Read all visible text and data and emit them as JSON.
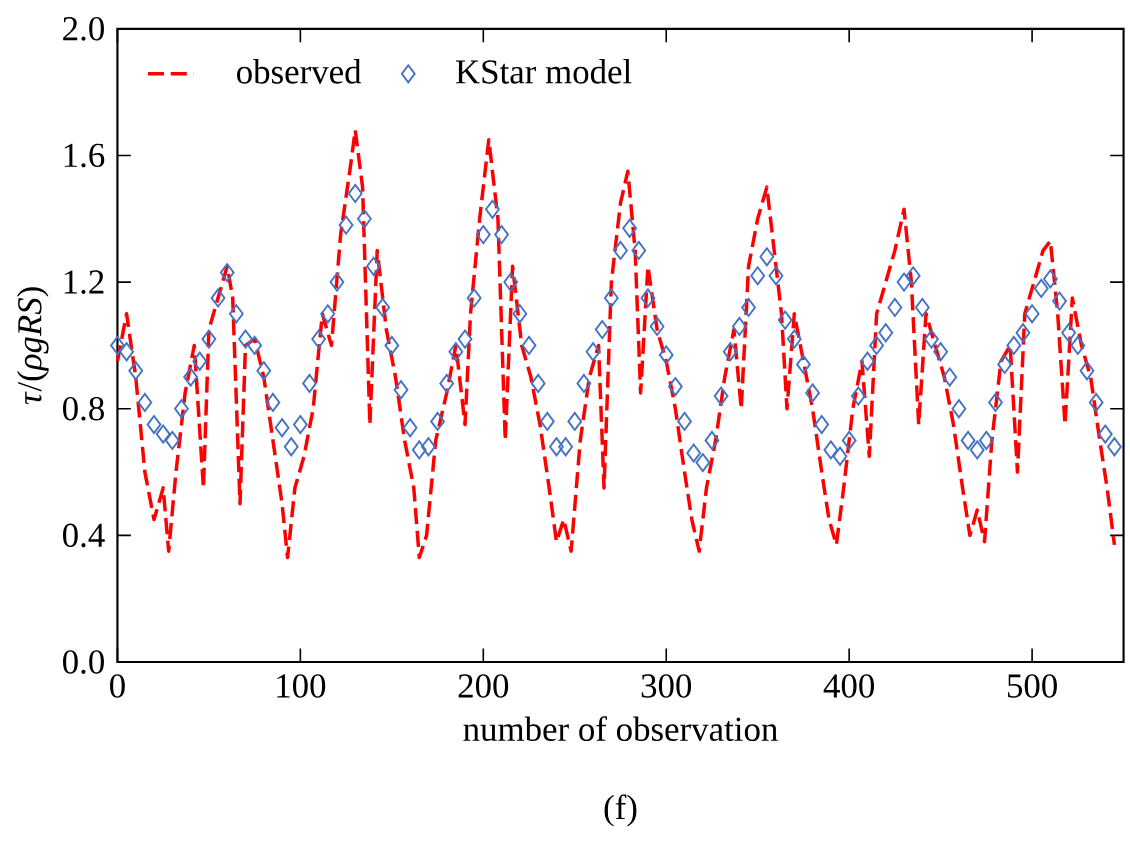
{
  "chart_data": {
    "type": "line",
    "xlabel": "number of observation",
    "ylabel": "*τ*/(*ρgRS*)",
    "annotations": [
      "(f)"
    ],
    "xlim": [
      0,
      550
    ],
    "xticks": [
      0,
      100,
      200,
      300,
      400,
      500
    ],
    "ylim": [
      0,
      2
    ],
    "yticks": [
      {
        "value": 0,
        "label": "0.0"
      },
      {
        "value": 0.4,
        "label": "0.4"
      },
      {
        "value": 0.8,
        "label": "0.8"
      },
      {
        "value": 1.2,
        "label": "1.2"
      },
      {
        "value": 1.6,
        "label": "1.6"
      },
      {
        "value": 2,
        "label": "2.0"
      }
    ],
    "grid": false,
    "legend": "top left",
    "series": [
      {
        "name": "observed",
        "type": "line",
        "color": "#ff0000",
        "line_style": "dashed",
        "marker": "none",
        "x": [
          0,
          5,
          10,
          15,
          20,
          25,
          28,
          32,
          37,
          42,
          47,
          50,
          55,
          60,
          63,
          67,
          70,
          75,
          80,
          85,
          90,
          93,
          97,
          102,
          107,
          112,
          117,
          122,
          127,
          130,
          134,
          138,
          142,
          147,
          152,
          157,
          162,
          165,
          169,
          174,
          180,
          185,
          190,
          193,
          198,
          203,
          208,
          212,
          216,
          221,
          226,
          231,
          236,
          240,
          244,
          248,
          253,
          258,
          263,
          266,
          270,
          275,
          279,
          283,
          286,
          290,
          295,
          300,
          305,
          310,
          314,
          318,
          322,
          327,
          332,
          337,
          341,
          345,
          350,
          355,
          359,
          363,
          366,
          370,
          375,
          380,
          385,
          389,
          393,
          397,
          402,
          407,
          411,
          415,
          420,
          425,
          430,
          434,
          438,
          442,
          447,
          452,
          457,
          462,
          466,
          470,
          474,
          478,
          483,
          488,
          492,
          496,
          501,
          506,
          510,
          514,
          518,
          522,
          527,
          532,
          537,
          541,
          545
        ],
        "values": [
          0.95,
          1.1,
          0.9,
          0.6,
          0.45,
          0.55,
          0.35,
          0.6,
          0.85,
          1.0,
          0.55,
          1.05,
          1.15,
          1.25,
          1.15,
          0.5,
          1.0,
          1.02,
          0.9,
          0.7,
          0.5,
          0.33,
          0.55,
          0.65,
          0.8,
          1.1,
          1.0,
          1.35,
          1.55,
          1.68,
          1.5,
          0.75,
          1.3,
          1.05,
          0.9,
          0.7,
          0.55,
          0.33,
          0.4,
          0.7,
          0.85,
          1.0,
          0.75,
          1.1,
          1.4,
          1.65,
          1.4,
          0.7,
          1.25,
          1.0,
          0.9,
          0.75,
          0.55,
          0.38,
          0.45,
          0.35,
          0.7,
          0.9,
          1.0,
          0.55,
          1.2,
          1.45,
          1.55,
          1.3,
          0.85,
          1.25,
          1.05,
          0.95,
          0.8,
          0.6,
          0.45,
          0.35,
          0.55,
          0.7,
          0.9,
          1.05,
          0.8,
          1.25,
          1.4,
          1.5,
          1.3,
          1.1,
          0.8,
          1.1,
          0.95,
          0.8,
          0.6,
          0.45,
          0.37,
          0.55,
          0.8,
          0.95,
          0.65,
          1.1,
          1.2,
          1.3,
          1.43,
          1.2,
          0.75,
          1.1,
          1.0,
          0.9,
          0.75,
          0.55,
          0.4,
          0.48,
          0.38,
          0.7,
          0.95,
          1.0,
          0.6,
          1.1,
          1.2,
          1.3,
          1.33,
          1.1,
          0.75,
          1.15,
          1.0,
          0.9,
          0.7,
          0.55,
          0.37
        ]
      },
      {
        "name": "KStar model",
        "type": "scatter",
        "color": "#4472c4",
        "marker": "diamond",
        "x": [
          0,
          5,
          10,
          15,
          20,
          25,
          30,
          35,
          40,
          45,
          50,
          55,
          60,
          65,
          70,
          75,
          80,
          85,
          90,
          95,
          100,
          105,
          110,
          115,
          120,
          125,
          130,
          135,
          140,
          145,
          150,
          155,
          160,
          165,
          170,
          175,
          180,
          185,
          190,
          195,
          200,
          205,
          210,
          215,
          220,
          225,
          230,
          235,
          240,
          245,
          250,
          255,
          260,
          265,
          270,
          275,
          280,
          285,
          290,
          295,
          300,
          305,
          310,
          315,
          320,
          325,
          330,
          335,
          340,
          345,
          350,
          355,
          360,
          365,
          370,
          375,
          380,
          385,
          390,
          395,
          400,
          405,
          410,
          415,
          420,
          425,
          430,
          435,
          440,
          445,
          450,
          455,
          460,
          465,
          470,
          475,
          480,
          485,
          490,
          495,
          500,
          505,
          510,
          515,
          520,
          525,
          530,
          535,
          540,
          545
        ],
        "values": [
          1.0,
          0.98,
          0.92,
          0.82,
          0.75,
          0.72,
          0.7,
          0.8,
          0.9,
          0.95,
          1.02,
          1.15,
          1.23,
          1.1,
          1.02,
          1.0,
          0.92,
          0.82,
          0.74,
          0.68,
          0.75,
          0.88,
          1.02,
          1.1,
          1.2,
          1.38,
          1.48,
          1.4,
          1.25,
          1.12,
          1.0,
          0.86,
          0.74,
          0.67,
          0.68,
          0.76,
          0.88,
          0.98,
          1.02,
          1.15,
          1.35,
          1.43,
          1.35,
          1.2,
          1.1,
          1.0,
          0.88,
          0.76,
          0.68,
          0.68,
          0.76,
          0.88,
          0.98,
          1.05,
          1.15,
          1.3,
          1.37,
          1.3,
          1.15,
          1.06,
          0.97,
          0.87,
          0.76,
          0.66,
          0.63,
          0.7,
          0.84,
          0.98,
          1.06,
          1.12,
          1.22,
          1.28,
          1.22,
          1.08,
          1.02,
          0.94,
          0.85,
          0.75,
          0.67,
          0.65,
          0.7,
          0.84,
          0.95,
          1.0,
          1.04,
          1.12,
          1.2,
          1.22,
          1.12,
          1.02,
          0.98,
          0.9,
          0.8,
          0.7,
          0.67,
          0.7,
          0.82,
          0.94,
          1.0,
          1.04,
          1.1,
          1.18,
          1.21,
          1.14,
          1.04,
          1.0,
          0.92,
          0.82,
          0.72,
          0.68
        ]
      }
    ]
  }
}
